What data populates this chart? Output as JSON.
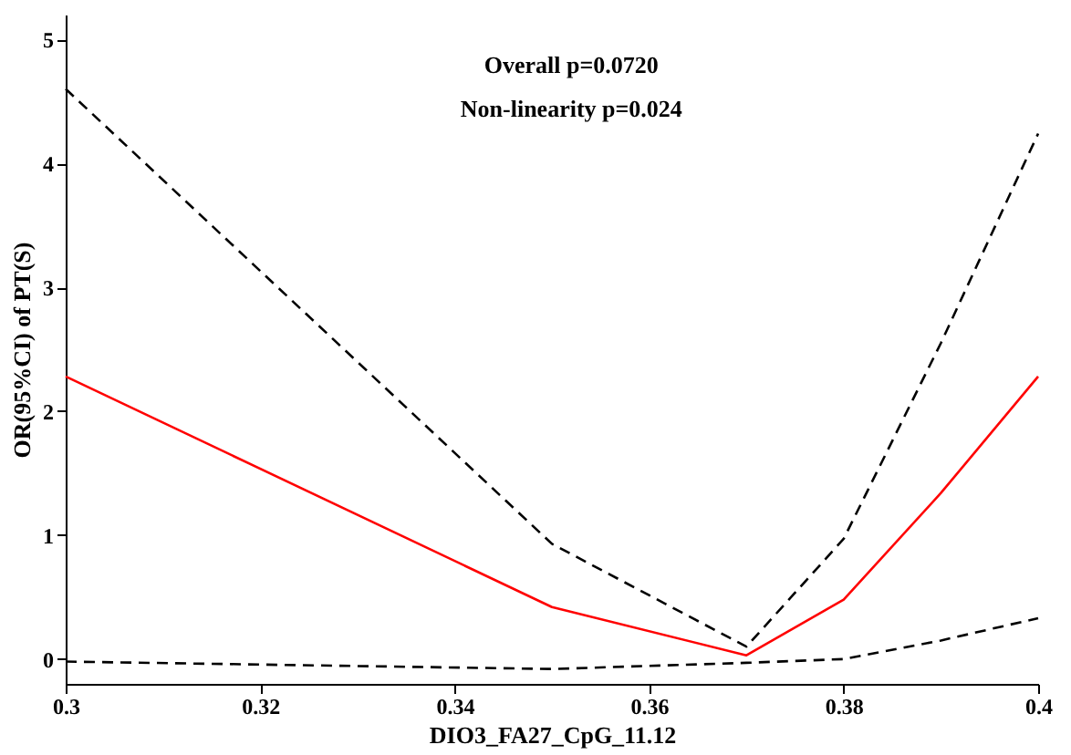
{
  "chart_data": {
    "type": "line",
    "xlabel": "DIO3_FA27_CpG_11.12",
    "ylabel": "OR(95%CI) of PT(S)",
    "annotations": [
      "Overall p=0.0720",
      "Non-linearity p=0.024"
    ],
    "x": [
      0.3,
      0.35,
      0.37,
      0.38,
      0.39,
      0.4
    ],
    "series": [
      {
        "color": "#ff0000",
        "line_style": "solid",
        "values": [
          2.28,
          0.42,
          0.03,
          0.48,
          1.34,
          2.28
        ]
      },
      {
        "color": "#000000",
        "line_style": "dashed",
        "values": [
          4.6,
          0.93,
          0.1,
          0.97,
          2.55,
          4.24
        ]
      },
      {
        "color": "#000000",
        "line_style": "dashed",
        "values": [
          -0.02,
          -0.08,
          -0.03,
          0.0,
          0.15,
          0.33
        ]
      }
    ],
    "xlim": [
      0.3,
      0.4
    ],
    "xticks": [
      0.3,
      0.32,
      0.34,
      0.36,
      0.38,
      0.4
    ],
    "ylim": [
      -0.2,
      5.2
    ],
    "yticks": [
      0,
      1,
      2,
      3,
      4,
      5
    ],
    "grid": false,
    "legend": false,
    "marker": "none"
  }
}
